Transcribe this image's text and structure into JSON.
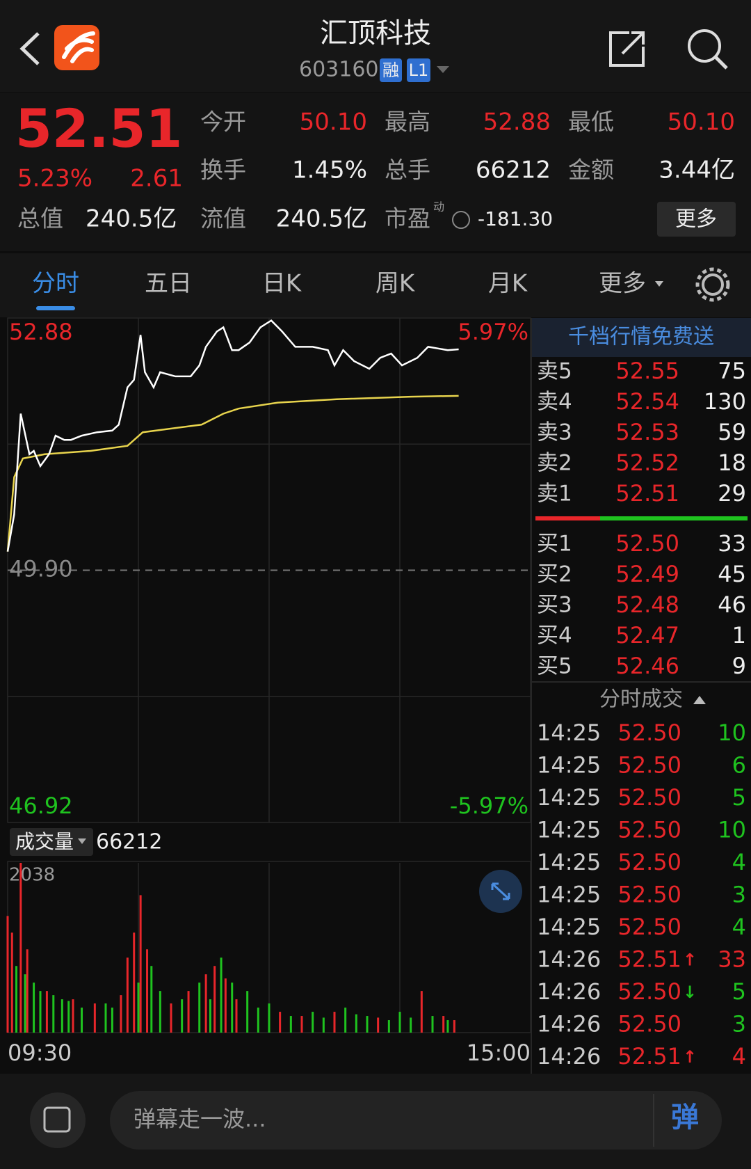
{
  "header": {
    "title": "汇顶科技",
    "code": "603160",
    "tags": [
      "融",
      "L1"
    ]
  },
  "quote": {
    "price": "52.51",
    "change_pct": "5.23%",
    "change": "2.61",
    "fields": [
      {
        "label": "今开",
        "value": "50.10",
        "color": "#e8262a"
      },
      {
        "label": "最高",
        "value": "52.88",
        "color": "#e8262a"
      },
      {
        "label": "最低",
        "value": "50.10",
        "color": "#e8262a"
      },
      {
        "label": "换手",
        "value": "1.45%",
        "color": "#eeeeee"
      },
      {
        "label": "总手",
        "value": "66212",
        "color": "#eeeeee"
      },
      {
        "label": "金额",
        "value": "3.44亿",
        "color": "#eeeeee"
      },
      {
        "label": "总值",
        "value": "240.5亿",
        "color": "#eeeeee"
      },
      {
        "label": "流值",
        "value": "240.5亿",
        "color": "#eeeeee"
      },
      {
        "label": "市盈",
        "note": "动",
        "value": "-181.30",
        "color": "#eeeeee"
      }
    ],
    "more": "更多"
  },
  "tabs": {
    "items": [
      "分时",
      "五日",
      "日K",
      "周K",
      "月K",
      "更多"
    ],
    "active": 0
  },
  "chart_data": [
    {
      "type": "line",
      "xlim": [
        0,
        240
      ],
      "ylim": [
        46.92,
        52.88
      ],
      "yticks": [
        46.92,
        {
          "value": 49.9,
          "label": "49.90"
        },
        52.88
      ],
      "y2lim": [
        -5.97,
        5.97
      ],
      "y2ticks": [
        {
          "value": -5.97,
          "label": "-5.97%"
        },
        {
          "value": 5.97,
          "label": "5.97%"
        }
      ],
      "series": [
        {
          "color": "#ffffff",
          "x": [
            0,
            3,
            6,
            10,
            12,
            15,
            19,
            22,
            26,
            29,
            34,
            41,
            48,
            51,
            55,
            58,
            61,
            63,
            67,
            70,
            77,
            84,
            88,
            91,
            96,
            99,
            103,
            106,
            111,
            116,
            121,
            126,
            132,
            140,
            147,
            150,
            154,
            159,
            166,
            171,
            176,
            181,
            188,
            193,
            202,
            207
          ],
          "values": [
            50.12,
            50.56,
            51.75,
            51.27,
            51.31,
            51.13,
            51.27,
            51.49,
            51.44,
            51.44,
            51.49,
            51.53,
            51.55,
            51.62,
            52.06,
            52.15,
            52.68,
            52.24,
            52.06,
            52.24,
            52.19,
            52.19,
            52.32,
            52.54,
            52.72,
            52.77,
            52.5,
            52.5,
            52.59,
            52.77,
            52.85,
            52.72,
            52.54,
            52.54,
            52.5,
            52.32,
            52.5,
            52.37,
            52.28,
            52.41,
            52.46,
            52.32,
            52.41,
            52.54,
            52.5,
            52.51
          ]
        },
        {
          "color": "#e8d44d",
          "x": [
            0,
            3,
            7,
            17,
            38,
            55,
            62,
            89,
            99,
            106,
            124,
            151,
            185,
            207
          ],
          "values": [
            50.12,
            51.0,
            51.22,
            51.27,
            51.31,
            51.37,
            51.53,
            51.62,
            51.75,
            51.81,
            51.88,
            51.92,
            51.95,
            51.96
          ]
        }
      ]
    },
    {
      "type": "bar",
      "title": "成交量",
      "total": "66212",
      "xlim": [
        0,
        240
      ],
      "xticks": [
        {
          "value": 0,
          "label": "09:30"
        },
        {
          "value": 240,
          "label": "15:00"
        }
      ],
      "ylim": [
        0,
        2038
      ],
      "yticks": [
        2038
      ],
      "series": [
        {
          "color": "#e8262a",
          "x": [
            0,
            2,
            6,
            9,
            18,
            30,
            40,
            52,
            55,
            58,
            61,
            64,
            75,
            83,
            91,
            95,
            100,
            105,
            125,
            135,
            150,
            170,
            190,
            200,
            205
          ],
          "values": [
            1400,
            1200,
            2038,
            1000,
            500,
            400,
            350,
            450,
            900,
            1200,
            1650,
            1000,
            350,
            500,
            700,
            800,
            650,
            400,
            250,
            200,
            250,
            180,
            500,
            200,
            150
          ]
        },
        {
          "color": "#1fc31f",
          "x": [
            4,
            8,
            12,
            15,
            21,
            25,
            28,
            34,
            45,
            48,
            60,
            66,
            70,
            80,
            88,
            93,
            98,
            103,
            110,
            115,
            120,
            130,
            140,
            145,
            155,
            160,
            165,
            175,
            180,
            185,
            195,
            202
          ],
          "values": [
            800,
            700,
            600,
            500,
            450,
            400,
            380,
            300,
            350,
            300,
            600,
            800,
            500,
            400,
            600,
            400,
            900,
            600,
            500,
            300,
            350,
            200,
            250,
            180,
            300,
            220,
            200,
            150,
            250,
            180,
            200,
            150
          ]
        }
      ]
    }
  ],
  "order_book": {
    "banner": "千档行情免费送",
    "asks": [
      {
        "label": "卖5",
        "price": "52.55",
        "volume": "75"
      },
      {
        "label": "卖4",
        "price": "52.54",
        "volume": "130"
      },
      {
        "label": "卖3",
        "price": "52.53",
        "volume": "59"
      },
      {
        "label": "卖2",
        "price": "52.52",
        "volume": "18"
      },
      {
        "label": "卖1",
        "price": "52.51",
        "volume": "29"
      }
    ],
    "bids": [
      {
        "label": "买1",
        "price": "52.50",
        "volume": "33"
      },
      {
        "label": "买2",
        "price": "52.49",
        "volume": "45"
      },
      {
        "label": "买3",
        "price": "52.48",
        "volume": "46"
      },
      {
        "label": "买4",
        "price": "52.47",
        "volume": "1"
      },
      {
        "label": "买5",
        "price": "52.46",
        "volume": "9"
      }
    ]
  },
  "trades": {
    "title": "分时成交",
    "rows": [
      {
        "time": "14:25",
        "price": "52.50",
        "volume": "10",
        "volume_color": "#1fc31f"
      },
      {
        "time": "14:25",
        "price": "52.50",
        "volume": "6",
        "volume_color": "#1fc31f"
      },
      {
        "time": "14:25",
        "price": "52.50",
        "volume": "5",
        "volume_color": "#1fc31f"
      },
      {
        "time": "14:25",
        "price": "52.50",
        "volume": "10",
        "volume_color": "#1fc31f"
      },
      {
        "time": "14:25",
        "price": "52.50",
        "volume": "4",
        "volume_color": "#1fc31f"
      },
      {
        "time": "14:25",
        "price": "52.50",
        "volume": "3",
        "volume_color": "#1fc31f"
      },
      {
        "time": "14:25",
        "price": "52.50",
        "volume": "4",
        "volume_color": "#1fc31f"
      },
      {
        "time": "14:26",
        "price": "52.51",
        "arrow": "↑",
        "arrow_color": "#e8262a",
        "volume": "33",
        "volume_color": "#e8262a"
      },
      {
        "time": "14:26",
        "price": "52.50",
        "arrow": "↓",
        "arrow_color": "#1fc31f",
        "volume": "5",
        "volume_color": "#1fc31f"
      },
      {
        "time": "14:26",
        "price": "52.50",
        "volume": "3",
        "volume_color": "#1fc31f"
      },
      {
        "time": "14:26",
        "price": "52.51",
        "arrow": "↑",
        "arrow_color": "#e8262a",
        "volume": "4",
        "volume_color": "#e8262a"
      }
    ]
  },
  "footer": {
    "placeholder": "弹幕走一波...",
    "button": "弹"
  }
}
